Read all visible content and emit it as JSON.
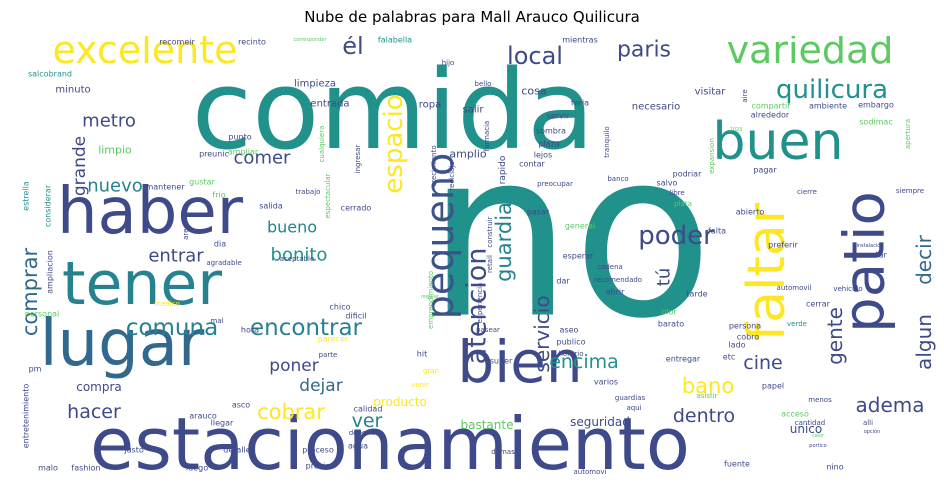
{
  "chart_data": {
    "type": "wordcloud",
    "title": "Nube de palabras para Mall Arauco Quilicura",
    "words": [
      {
        "text": "no",
        "weight": 100,
        "color": "#21918c"
      },
      {
        "text": "comida",
        "weight": 80,
        "color": "#21918c"
      },
      {
        "text": "estacionamiento",
        "weight": 62,
        "color": "#3e4a89"
      },
      {
        "text": "lugar",
        "weight": 48,
        "color": "#31688e"
      },
      {
        "text": "haber",
        "weight": 48,
        "color": "#3e4a89"
      },
      {
        "text": "tener",
        "weight": 46,
        "color": "#26828e"
      },
      {
        "text": "bien",
        "weight": 45,
        "color": "#3e4a89"
      },
      {
        "text": "patio",
        "weight": 44,
        "color": "#3e4a89"
      },
      {
        "text": "faltar",
        "weight": 40,
        "color": "#fde725"
      },
      {
        "text": "buen",
        "weight": 40,
        "color": "#21918c"
      },
      {
        "text": "variedad",
        "weight": 29,
        "color": "#5ec962"
      },
      {
        "text": "excelente",
        "weight": 29,
        "color": "#fde725"
      },
      {
        "text": "pequeno",
        "weight": 28,
        "color": "#3b528b"
      },
      {
        "text": "quilicura",
        "weight": 22,
        "color": "#21918c"
      },
      {
        "text": "espacio",
        "weight": 22,
        "color": "#fde725"
      },
      {
        "text": "atencion",
        "weight": 22,
        "color": "#3e4a89"
      },
      {
        "text": "poder",
        "weight": 22,
        "color": "#3e4a89"
      },
      {
        "text": "local",
        "weight": 20,
        "color": "#3e4a89"
      },
      {
        "text": "paris",
        "weight": 18,
        "color": "#3e4a89"
      },
      {
        "text": "él",
        "weight": 20,
        "color": "#3e4a89"
      },
      {
        "text": "comuna",
        "weight": 19,
        "color": "#26828e"
      },
      {
        "text": "encontrar",
        "weight": 19,
        "color": "#26828e"
      },
      {
        "text": "comprar",
        "weight": 17,
        "color": "#31688e"
      },
      {
        "text": "guardia",
        "weight": 17,
        "color": "#26828e"
      },
      {
        "text": "servicio",
        "weight": 17,
        "color": "#3e4a89"
      },
      {
        "text": "gente",
        "weight": 16,
        "color": "#3e4a89"
      },
      {
        "text": "algun",
        "weight": 16,
        "color": "#3e4a89"
      },
      {
        "text": "decir",
        "weight": 16,
        "color": "#31688e"
      },
      {
        "text": "adema",
        "weight": 16,
        "color": "#3e4a89"
      },
      {
        "text": "cobrar",
        "weight": 17,
        "color": "#fde725"
      },
      {
        "text": "bano",
        "weight": 17,
        "color": "#fde725"
      },
      {
        "text": "encima",
        "weight": 16,
        "color": "#21918c"
      },
      {
        "text": "cine",
        "weight": 16,
        "color": "#3e4a89"
      },
      {
        "text": "dentro",
        "weight": 15,
        "color": "#3e4a89"
      },
      {
        "text": "hacer",
        "weight": 15,
        "color": "#3e4a89"
      },
      {
        "text": "ver",
        "weight": 15,
        "color": "#26828e"
      },
      {
        "text": "metro",
        "weight": 15,
        "color": "#3e4a89"
      },
      {
        "text": "nuevo",
        "weight": 15,
        "color": "#26828e"
      },
      {
        "text": "comer",
        "weight": 15,
        "color": "#3e4a89"
      },
      {
        "text": "grande",
        "weight": 14,
        "color": "#3e4a89"
      },
      {
        "text": "bonito",
        "weight": 14,
        "color": "#21918c"
      },
      {
        "text": "entrar",
        "weight": 14,
        "color": "#3e4a89"
      },
      {
        "text": "bueno",
        "weight": 13,
        "color": "#26828e"
      },
      {
        "text": "poner",
        "weight": 14,
        "color": "#3e4a89"
      },
      {
        "text": "dejar",
        "weight": 14,
        "color": "#31688e"
      },
      {
        "text": "tú",
        "weight": 14,
        "color": "#3e4a89"
      },
      {
        "text": "seguridad",
        "weight": 9,
        "color": "#3e4a89"
      },
      {
        "text": "unico",
        "weight": 9,
        "color": "#3e4a89"
      },
      {
        "text": "bastante",
        "weight": 9,
        "color": "#5ec962"
      },
      {
        "text": "producto",
        "weight": 9,
        "color": "#fde725"
      },
      {
        "text": "compra",
        "weight": 9,
        "color": "#3e4a89"
      },
      {
        "text": "limpio",
        "weight": 9,
        "color": "#5ec962"
      },
      {
        "text": "amplio",
        "weight": 9,
        "color": "#3e4a89"
      },
      {
        "text": "ropa",
        "weight": 8,
        "color": "#3e4a89"
      },
      {
        "text": "cosa",
        "weight": 8,
        "color": "#3e4a89"
      },
      {
        "text": "salir",
        "weight": 8,
        "color": "#3e4a89"
      },
      {
        "text": "visitar",
        "weight": 8,
        "color": "#3e4a89"
      },
      {
        "text": "necesario",
        "weight": 7,
        "color": "#3e4a89"
      },
      {
        "text": "limpieza",
        "weight": 7,
        "color": "#3e4a89"
      },
      {
        "text": "entrada",
        "weight": 7,
        "color": "#3e4a89"
      },
      {
        "text": "minuto",
        "weight": 6,
        "color": "#3e4a89"
      },
      {
        "text": "recomeir",
        "weight": 5,
        "color": "#3e4a89"
      },
      {
        "text": "recinto",
        "weight": 5,
        "color": "#3e4a89"
      },
      {
        "text": "falabella",
        "weight": 5,
        "color": "#21918c"
      },
      {
        "text": "feria",
        "weight": 5,
        "color": "#3e4a89"
      },
      {
        "text": "mientras",
        "weight": 5,
        "color": "#3e4a89"
      },
      {
        "text": "compartir",
        "weight": 5,
        "color": "#5ec962"
      },
      {
        "text": "ambiente",
        "weight": 5,
        "color": "#3e4a89"
      },
      {
        "text": "embargo",
        "weight": 5,
        "color": "#3e4a89"
      },
      {
        "text": "salcobrand",
        "weight": 5,
        "color": "#21918c"
      },
      {
        "text": "preunic",
        "weight": 6,
        "color": "#3e4a89"
      },
      {
        "text": "punto",
        "weight": 5,
        "color": "#3e4a89"
      },
      {
        "text": "ampliar",
        "weight": 5,
        "color": "#5ec962"
      },
      {
        "text": "mantener",
        "weight": 5,
        "color": "#3e4a89"
      },
      {
        "text": "gustar",
        "weight": 5,
        "color": "#5ec962"
      },
      {
        "text": "frio",
        "weight": 5,
        "color": "#5ec962"
      },
      {
        "text": "servir",
        "weight": 5,
        "color": "#3e4a89"
      },
      {
        "text": "rapido",
        "weight": 7,
        "color": "#3e4a89"
      },
      {
        "text": "sombra",
        "weight": 5,
        "color": "#3e4a89"
      },
      {
        "text": "plaza",
        "weight": 5,
        "color": "#3e4a89"
      },
      {
        "text": "lejos",
        "weight": 5,
        "color": "#3e4a89"
      },
      {
        "text": "salvo",
        "weight": 5,
        "color": "#3e4a89"
      },
      {
        "text": "alrededor",
        "weight": 5,
        "color": "#3e4a89"
      },
      {
        "text": "sodimac",
        "weight": 5,
        "color": "#5ec962"
      },
      {
        "text": "estrella",
        "weight": 5,
        "color": "#21918c"
      },
      {
        "text": "considerar",
        "weight": 5,
        "color": "#21918c"
      },
      {
        "text": "dia",
        "weight": 6,
        "color": "#3e4a89"
      },
      {
        "text": "trabajo",
        "weight": 5,
        "color": "#3e4a89"
      },
      {
        "text": "salida",
        "weight": 6,
        "color": "#3e4a89"
      },
      {
        "text": "cerrado",
        "weight": 6,
        "color": "#3e4a89"
      },
      {
        "text": "aceptable",
        "weight": 5,
        "color": "#3e4a89"
      },
      {
        "text": "agradable",
        "weight": 5,
        "color": "#3e4a89"
      },
      {
        "text": "ampliacion",
        "weight": 5,
        "color": "#3e4a89"
      },
      {
        "text": "medico",
        "weight": 5,
        "color": "#fde725"
      },
      {
        "text": "personal",
        "weight": 5,
        "color": "#5ec962"
      },
      {
        "text": "chico",
        "weight": 5,
        "color": "#3e4a89"
      },
      {
        "text": "dificil",
        "weight": 5,
        "color": "#3e4a89"
      },
      {
        "text": "mal",
        "weight": 5,
        "color": "#3e4a89"
      },
      {
        "text": "hora",
        "weight": 6,
        "color": "#3e4a89"
      },
      {
        "text": "parecer",
        "weight": 6,
        "color": "#fde725"
      },
      {
        "text": "parte",
        "weight": 5,
        "color": "#3e4a89"
      },
      {
        "text": "hit",
        "weight": 6,
        "color": "#3e4a89"
      },
      {
        "text": "gran",
        "weight": 5,
        "color": "#fde725"
      },
      {
        "text": "venir",
        "weight": 5,
        "color": "#fde725"
      },
      {
        "text": "pm",
        "weight": 5,
        "color": "#3e4a89"
      },
      {
        "text": "entretenimiento",
        "weight": 5,
        "color": "#3e4a89"
      },
      {
        "text": "arauco",
        "weight": 5,
        "color": "#3e4a89"
      },
      {
        "text": "asco",
        "weight": 5,
        "color": "#3e4a89"
      },
      {
        "text": "llegar",
        "weight": 5,
        "color": "#3e4a89"
      },
      {
        "text": "deberio",
        "weight": 5,
        "color": "#3e4a89"
      },
      {
        "text": "calidad",
        "weight": 5,
        "color": "#3e4a89"
      },
      {
        "text": "agua",
        "weight": 5,
        "color": "#3e4a89"
      },
      {
        "text": "justo",
        "weight": 5,
        "color": "#3e4a89"
      },
      {
        "text": "detalle",
        "weight": 5,
        "color": "#3e4a89"
      },
      {
        "text": "malo",
        "weight": 5,
        "color": "#3e4a89"
      },
      {
        "text": "fashion",
        "weight": 5,
        "color": "#3e4a89"
      },
      {
        "text": "luego",
        "weight": 5,
        "color": "#3e4a89"
      },
      {
        "text": "proceso",
        "weight": 6,
        "color": "#3e4a89"
      },
      {
        "text": "precio",
        "weight": 6,
        "color": "#3e4a89"
      },
      {
        "text": "demas",
        "weight": 5,
        "color": "#3e4a89"
      },
      {
        "text": "aseo",
        "weight": 5,
        "color": "#3e4a89"
      },
      {
        "text": "publico",
        "weight": 6,
        "color": "#3e4a89"
      },
      {
        "text": "super",
        "weight": 6,
        "color": "#3e4a89"
      },
      {
        "text": "varios",
        "weight": 6,
        "color": "#3e4a89"
      },
      {
        "text": "entregar",
        "weight": 6,
        "color": "#3e4a89"
      },
      {
        "text": "asistir",
        "weight": 5,
        "color": "#5ec962"
      },
      {
        "text": "guardias",
        "weight": 5,
        "color": "#3e4a89"
      },
      {
        "text": "aqui",
        "weight": 5,
        "color": "#3e4a89"
      },
      {
        "text": "acceso",
        "weight": 6,
        "color": "#5ec962"
      },
      {
        "text": "cantidad",
        "weight": 5,
        "color": "#3e4a89"
      },
      {
        "text": "alli",
        "weight": 5,
        "color": "#3e4a89"
      },
      {
        "text": "fuente",
        "weight": 5,
        "color": "#3e4a89"
      },
      {
        "text": "nino",
        "weight": 5,
        "color": "#3e4a89"
      },
      {
        "text": "menos",
        "weight": 5,
        "color": "#3e4a89"
      },
      {
        "text": "papel",
        "weight": 6,
        "color": "#3e4a89"
      },
      {
        "text": "cobro",
        "weight": 6,
        "color": "#3e4a89"
      },
      {
        "text": "lado",
        "weight": 6,
        "color": "#3e4a89"
      },
      {
        "text": "etc",
        "weight": 5,
        "color": "#3e4a89"
      },
      {
        "text": "barato",
        "weight": 6,
        "color": "#3e4a89"
      },
      {
        "text": "persona",
        "weight": 6,
        "color": "#3e4a89"
      },
      {
        "text": "verde",
        "weight": 5,
        "color": "#21918c"
      },
      {
        "text": "cerrar",
        "weight": 6,
        "color": "#3e4a89"
      },
      {
        "text": "vehiculo",
        "weight": 5,
        "color": "#3e4a89"
      },
      {
        "text": "automovil",
        "weight": 5,
        "color": "#3e4a89"
      },
      {
        "text": "encantar",
        "weight": 6,
        "color": "#3e4a89"
      },
      {
        "text": "preferir",
        "weight": 5,
        "color": "#3e4a89"
      },
      {
        "text": "falta",
        "weight": 7,
        "color": "#3e4a89"
      },
      {
        "text": "abierto",
        "weight": 6,
        "color": "#3e4a89"
      },
      {
        "text": "pagar",
        "weight": 7,
        "color": "#3e4a89"
      },
      {
        "text": "podriar",
        "weight": 6,
        "color": "#3e4a89"
      },
      {
        "text": "contar",
        "weight": 6,
        "color": "#3e4a89"
      },
      {
        "text": "banco",
        "weight": 5,
        "color": "#3e4a89"
      },
      {
        "text": "libre",
        "weight": 5,
        "color": "#3e4a89"
      },
      {
        "text": "plata",
        "weight": 5,
        "color": "#5ec962"
      },
      {
        "text": "cierre",
        "weight": 5,
        "color": "#3e4a89"
      },
      {
        "text": "siempre",
        "weight": 5,
        "color": "#3e4a89"
      },
      {
        "text": "general",
        "weight": 7,
        "color": "#5ec962"
      },
      {
        "text": "esperar",
        "weight": 7,
        "color": "#3e4a89"
      },
      {
        "text": "cadena",
        "weight": 5,
        "color": "#3e4a89"
      },
      {
        "text": "recomendado",
        "weight": 5,
        "color": "#3e4a89"
      },
      {
        "text": "pasar",
        "weight": 6,
        "color": "#3e4a89"
      },
      {
        "text": "dar",
        "weight": 6,
        "color": "#3e4a89"
      },
      {
        "text": "olor",
        "weight": 6,
        "color": "#5ec962"
      },
      {
        "text": "abrir",
        "weight": 5,
        "color": "#3e4a89"
      },
      {
        "text": "tarde",
        "weight": 5,
        "color": "#3e4a89"
      },
      {
        "text": "horario",
        "weight": 5,
        "color": "#3e4a89"
      },
      {
        "text": "pasear",
        "weight": 5,
        "color": "#3e4a89"
      },
      {
        "text": "automovi",
        "weight": 5,
        "color": "#3e4a89"
      },
      {
        "text": "hijo",
        "weight": 5,
        "color": "#3e4a89"
      },
      {
        "text": "bello",
        "weight": 5,
        "color": "#3e4a89"
      },
      {
        "text": "ingresar",
        "weight": 5,
        "color": "#3e4a89"
      },
      {
        "text": "crecimiento",
        "weight": 5,
        "color": "#3e4a89"
      },
      {
        "text": "reciclaje",
        "weight": 5,
        "color": "#3e4a89"
      },
      {
        "text": "cualquiera",
        "weight": 5,
        "color": "#5ec962"
      },
      {
        "text": "espectacular",
        "weight": 5,
        "color": "#5ec962"
      },
      {
        "text": "area",
        "weight": 5,
        "color": "#3e4a89"
      },
      {
        "text": "emprendimiento",
        "weight": 5,
        "color": "#5ec962"
      },
      {
        "text": "farmacia",
        "weight": 5,
        "color": "#3e4a89"
      },
      {
        "text": "tranquilo",
        "weight": 5,
        "color": "#3e4a89"
      },
      {
        "text": "preocupar",
        "weight": 5,
        "color": "#3e4a89"
      },
      {
        "text": "expansion",
        "weight": 5,
        "color": "#5ec962"
      },
      {
        "text": "apertura",
        "weight": 5,
        "color": "#5ec962"
      },
      {
        "text": "aire",
        "weight": 5,
        "color": "#3e4a89"
      },
      {
        "text": "construir",
        "weight": 5,
        "color": "#3e4a89"
      },
      {
        "text": "retail",
        "weight": 5,
        "color": "#3e4a89"
      },
      {
        "text": "experiencia",
        "weight": 5,
        "color": "#3e4a89"
      },
      {
        "text": "instalación",
        "weight": 4,
        "color": "#3e4a89"
      },
      {
        "text": "regular",
        "weight": 4,
        "color": "#5ec962"
      },
      {
        "text": "opción",
        "weight": 4,
        "color": "#3e4a89"
      },
      {
        "text": "portico",
        "weight": 4,
        "color": "#3e4a89"
      },
      {
        "text": "pesar",
        "weight": 4,
        "color": "#3e4a89"
      },
      {
        "text": "calor",
        "weight": 4,
        "color": "#5ec962"
      },
      {
        "text": "2023",
        "weight": 4,
        "color": "#5ec962"
      },
      {
        "text": "corresponder",
        "weight": 4,
        "color": "#5ec962"
      }
    ]
  }
}
